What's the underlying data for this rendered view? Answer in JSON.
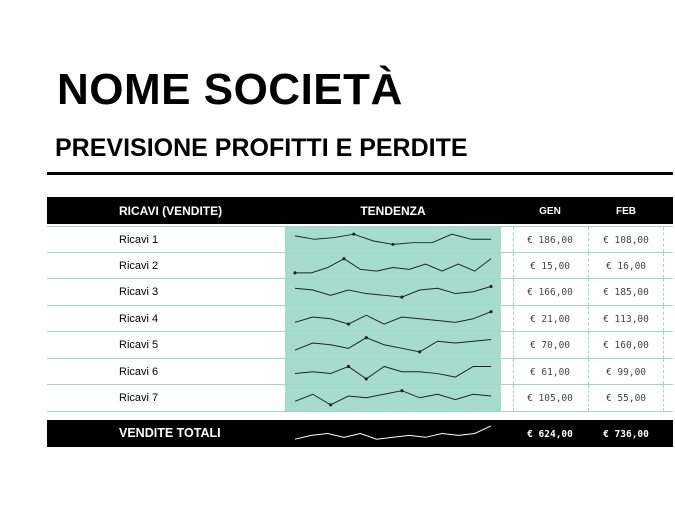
{
  "header": {
    "company": "NOME SOCIETÀ",
    "subtitle": "PREVISIONE PROFITTI E PERDITE"
  },
  "table": {
    "columns": {
      "name": "RICAVI (VENDITE)",
      "trend": "TENDENZA",
      "month1": "GEN",
      "month2": "FEB"
    },
    "rows": [
      {
        "name": "Ricavi 1",
        "jan": "€ 186,00",
        "feb": "€ 108,00",
        "trend": [
          7,
          5,
          6,
          8,
          4,
          2,
          3,
          3,
          8,
          5,
          5
        ]
      },
      {
        "name": "Ricavi 2",
        "jan": "€ 15,00",
        "feb": "€ 16,00",
        "trend": [
          1,
          1,
          4,
          9,
          3,
          2,
          4,
          3,
          6,
          2,
          6,
          2,
          9
        ]
      },
      {
        "name": "Ricavi 3",
        "jan": "€ 166,00",
        "feb": "€ 185,00",
        "trend": [
          7,
          6,
          3,
          6,
          4,
          3,
          2,
          6,
          7,
          4,
          5,
          8
        ]
      },
      {
        "name": "Ricavi 4",
        "jan": "€ 21,00",
        "feb": "€ 113,00",
        "trend": [
          3,
          6,
          5,
          2,
          7,
          2,
          6,
          5,
          4,
          3,
          5,
          9
        ]
      },
      {
        "name": "Ricavi 5",
        "jan": "€ 70,00",
        "feb": "€ 160,00",
        "trend": [
          2,
          6,
          5,
          3,
          9,
          5,
          3,
          1,
          7,
          6,
          7,
          8
        ]
      },
      {
        "name": "Ricavi 6",
        "jan": "€ 61,00",
        "feb": "€ 99,00",
        "trend": [
          4,
          5,
          4,
          8,
          1,
          8,
          5,
          5,
          4,
          2,
          8,
          8
        ]
      },
      {
        "name": "Ricavi 7",
        "jan": "€ 105,00",
        "feb": "€ 55,00",
        "trend": [
          3,
          7,
          1,
          6,
          5,
          7,
          9,
          5,
          7,
          4,
          7,
          6
        ]
      }
    ],
    "total": {
      "label": "VENDITE TOTALI",
      "jan": "€ 624,00",
      "feb": "€ 736,00",
      "trend": [
        2,
        4,
        5,
        3,
        5,
        2,
        3,
        4,
        3,
        5,
        4,
        5,
        9
      ]
    }
  },
  "colors": {
    "sparkline_fill": "#a6dccb",
    "row_line": "#9fd8c4",
    "header_bg": "#000000"
  }
}
